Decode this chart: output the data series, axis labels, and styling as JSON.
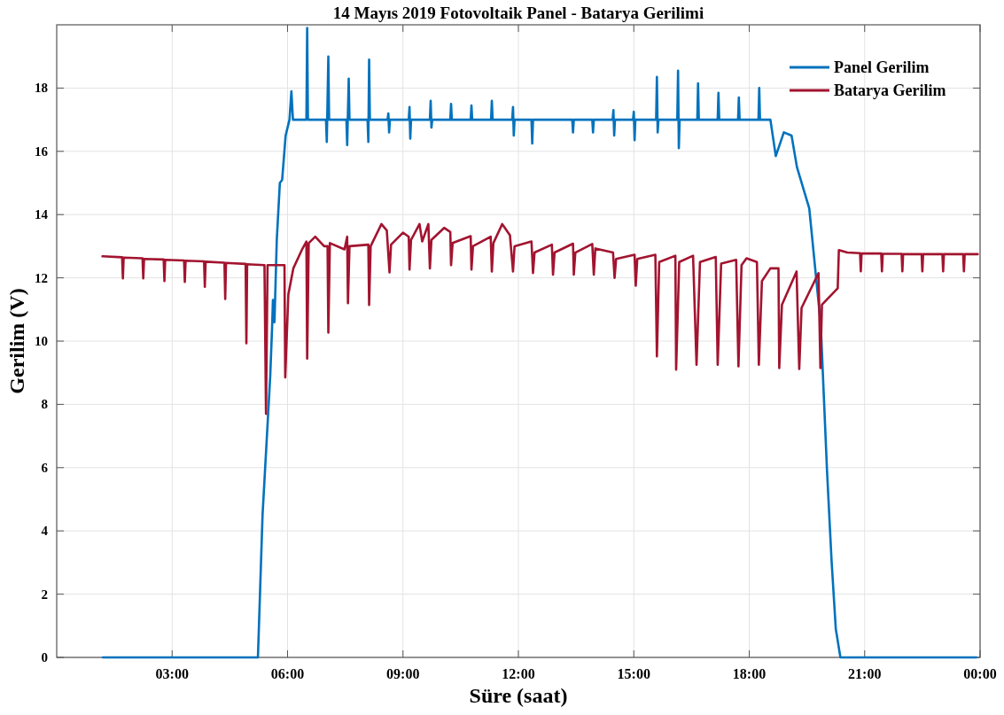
{
  "chart_data": {
    "type": "line",
    "title": "14 Mayıs 2019 Fotovoltaik Panel - Batarya Gerilimi",
    "xlabel": "Süre (saat)",
    "ylabel": "Gerilim (V)",
    "xlim": [
      0,
      24
    ],
    "xticks": [
      {
        "value": 3,
        "label": "03:00"
      },
      {
        "value": 6,
        "label": "06:00"
      },
      {
        "value": 9,
        "label": "09:00"
      },
      {
        "value": 12,
        "label": "12:00"
      },
      {
        "value": 15,
        "label": "15:00"
      },
      {
        "value": 18,
        "label": "18:00"
      },
      {
        "value": 21,
        "label": "21:00"
      },
      {
        "value": 24,
        "label": "00:00"
      }
    ],
    "ylim": [
      0,
      20
    ],
    "yticks": [
      0,
      2,
      4,
      6,
      8,
      10,
      12,
      14,
      16,
      18
    ],
    "grid": true,
    "legend": "top right",
    "line_style": "solid",
    "marker": "none",
    "series": [
      {
        "name": "Panel Gerilim",
        "color": "#0072bd",
        "x": [
          1.2,
          5.23,
          5.35,
          5.55,
          5.6,
          5.62,
          5.66,
          5.72,
          5.8,
          5.86,
          5.95,
          6.05,
          6.1,
          6.14,
          6.49,
          6.51,
          6.53,
          7.0,
          7.02,
          7.06,
          7.08,
          7.53,
          7.55,
          7.59,
          7.61,
          8.08,
          8.1,
          8.12,
          8.14,
          8.6,
          8.62,
          8.64,
          8.66,
          9.15,
          9.17,
          9.19,
          9.21,
          9.7,
          9.72,
          9.74,
          9.76,
          10.23,
          10.25,
          10.27,
          10.76,
          10.78,
          10.8,
          11.29,
          11.31,
          11.33,
          11.84,
          11.86,
          11.88,
          11.9,
          12.34,
          12.36,
          12.38,
          13.4,
          13.42,
          13.44,
          13.92,
          13.94,
          13.96,
          14.45,
          14.47,
          14.49,
          14.51,
          14.98,
          15.0,
          15.02,
          15.04,
          15.58,
          15.6,
          15.62,
          15.64,
          16.13,
          16.15,
          16.17,
          16.19,
          16.65,
          16.67,
          16.69,
          17.18,
          17.2,
          17.22,
          17.71,
          17.73,
          17.75,
          18.24,
          18.26,
          18.28,
          18.55,
          18.69,
          18.9,
          19.1,
          19.24,
          19.56,
          19.86,
          20.02,
          20.14,
          20.25,
          20.37,
          23.9
        ],
        "values": [
          0,
          0,
          4.5,
          8.9,
          10.5,
          11.3,
          10.6,
          13.2,
          15.0,
          15.1,
          16.5,
          17.0,
          17.9,
          17.0,
          17.0,
          19.9,
          17.0,
          17.0,
          16.3,
          19.0,
          17.0,
          17.0,
          16.2,
          18.3,
          17.0,
          17.0,
          16.3,
          18.9,
          17.0,
          17.0,
          17.2,
          16.6,
          17.0,
          17.0,
          17.4,
          16.4,
          17.0,
          17.0,
          17.6,
          16.75,
          17.0,
          17.0,
          17.5,
          17.0,
          17.0,
          17.45,
          17.0,
          17.0,
          17.6,
          17.0,
          17.0,
          17.4,
          16.5,
          17.0,
          17.0,
          16.25,
          17.0,
          17.0,
          16.6,
          17.0,
          17.0,
          16.6,
          17.0,
          17.0,
          17.3,
          16.5,
          17.0,
          17.0,
          17.25,
          16.35,
          17.0,
          17.0,
          18.35,
          16.6,
          17.0,
          17.0,
          18.55,
          16.1,
          17.0,
          17.0,
          18.15,
          17.0,
          17.0,
          17.85,
          17.0,
          17.0,
          17.7,
          17.0,
          17.0,
          18.0,
          17.0,
          17.0,
          15.85,
          16.6,
          16.5,
          15.5,
          14.2,
          10.5,
          5.95,
          3.06,
          0.9,
          0,
          0
        ]
      },
      {
        "name": "Batarya Gerilim",
        "color": "#a2142f",
        "x": [
          1.19,
          1.7,
          1.72,
          1.74,
          2.23,
          2.25,
          2.27,
          2.78,
          2.8,
          2.82,
          3.31,
          3.33,
          3.35,
          3.83,
          3.85,
          3.87,
          4.36,
          4.38,
          4.4,
          4.91,
          4.93,
          4.95,
          5.4,
          5.44,
          5.48,
          5.92,
          5.94,
          6.02,
          6.15,
          6.37,
          6.49,
          6.51,
          6.55,
          6.72,
          6.95,
          7.04,
          7.06,
          7.1,
          7.48,
          7.55,
          7.57,
          7.61,
          8.1,
          8.12,
          8.16,
          8.44,
          8.58,
          8.65,
          8.69,
          9.0,
          9.15,
          9.17,
          9.21,
          9.43,
          9.5,
          9.66,
          9.7,
          9.74,
          10.07,
          10.23,
          10.25,
          10.29,
          10.76,
          10.78,
          10.82,
          11.28,
          11.31,
          11.35,
          11.58,
          11.78,
          11.86,
          11.9,
          12.34,
          12.38,
          12.42,
          12.87,
          12.9,
          12.94,
          13.42,
          13.44,
          13.48,
          13.92,
          13.96,
          14.0,
          14.46,
          14.5,
          14.54,
          15.02,
          15.05,
          15.09,
          15.56,
          15.6,
          15.66,
          16.08,
          16.1,
          16.18,
          16.54,
          16.63,
          16.72,
          17.13,
          17.18,
          17.27,
          17.66,
          17.72,
          17.8,
          17.93,
          18.2,
          18.25,
          18.33,
          18.55,
          18.76,
          18.78,
          18.85,
          19.23,
          19.3,
          19.36,
          19.8,
          19.85,
          19.89,
          20.3,
          20.33,
          20.55,
          20.88,
          20.9,
          20.92,
          21.43,
          21.45,
          21.47,
          21.96,
          21.98,
          22.0,
          22.48,
          22.5,
          22.52,
          23.02,
          23.04,
          23.06,
          23.56,
          23.58,
          23.6,
          23.94
        ],
        "values": [
          12.68,
          12.65,
          11.98,
          12.64,
          12.62,
          11.98,
          12.6,
          12.58,
          11.9,
          12.57,
          12.55,
          11.87,
          12.54,
          12.52,
          11.72,
          12.51,
          12.48,
          11.33,
          12.47,
          12.44,
          9.93,
          12.43,
          12.4,
          7.7,
          12.4,
          12.4,
          8.85,
          11.47,
          12.3,
          12.88,
          13.15,
          9.45,
          13.1,
          13.3,
          13.0,
          13.0,
          10.27,
          13.1,
          12.9,
          13.3,
          11.2,
          13.0,
          13.05,
          11.14,
          13.0,
          13.7,
          13.5,
          12.17,
          13.05,
          13.43,
          13.3,
          12.26,
          13.2,
          13.7,
          13.15,
          13.7,
          12.3,
          13.2,
          13.58,
          13.45,
          12.4,
          13.1,
          13.32,
          12.26,
          13.0,
          13.3,
          12.2,
          13.1,
          13.7,
          13.35,
          12.2,
          13.0,
          13.15,
          12.15,
          12.8,
          13.05,
          12.1,
          12.8,
          13.08,
          12.1,
          12.8,
          13.07,
          12.1,
          12.93,
          12.8,
          12.0,
          12.6,
          12.73,
          11.75,
          12.6,
          12.73,
          9.52,
          12.5,
          12.7,
          9.1,
          12.5,
          12.7,
          9.25,
          12.5,
          12.66,
          9.25,
          12.45,
          12.57,
          9.2,
          12.4,
          12.62,
          12.5,
          9.25,
          11.9,
          12.3,
          12.3,
          9.15,
          11.15,
          12.2,
          9.12,
          11.05,
          12.15,
          9.15,
          11.15,
          11.67,
          12.88,
          12.8,
          12.78,
          12.21,
          12.77,
          12.77,
          12.21,
          12.76,
          12.76,
          12.21,
          12.75,
          12.75,
          12.21,
          12.75,
          12.75,
          12.21,
          12.75,
          12.75,
          12.21,
          12.75,
          12.75
        ]
      }
    ]
  }
}
